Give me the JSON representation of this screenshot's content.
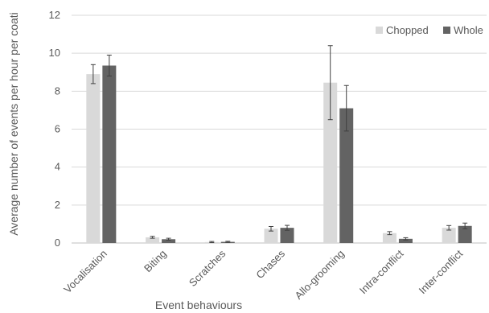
{
  "chart_data": {
    "type": "bar",
    "title": "",
    "xlabel": "Event behaviours",
    "ylabel": "Average number of events per hour per coati",
    "ylim": [
      0,
      12
    ],
    "yticks": [
      0,
      2,
      4,
      6,
      8,
      10,
      12
    ],
    "grid": true,
    "legend_position": "top-right",
    "categories": [
      "Vocalisation",
      "Biting",
      "Scratches",
      "Chases",
      "Allo-grooming",
      "Intra-conflict",
      "Inter-conflict"
    ],
    "series": [
      {
        "name": "Chopped",
        "color": "#d9d9d9",
        "values": [
          8.9,
          0.3,
          0.05,
          0.75,
          8.45,
          0.52,
          0.8
        ],
        "errors": [
          0.5,
          0.05,
          0.03,
          0.12,
          1.95,
          0.08,
          0.12
        ]
      },
      {
        "name": "Whole",
        "color": "#636363",
        "values": [
          9.35,
          0.2,
          0.06,
          0.8,
          7.1,
          0.22,
          0.9
        ],
        "errors": [
          0.55,
          0.05,
          0.03,
          0.13,
          1.2,
          0.06,
          0.15
        ]
      }
    ]
  }
}
